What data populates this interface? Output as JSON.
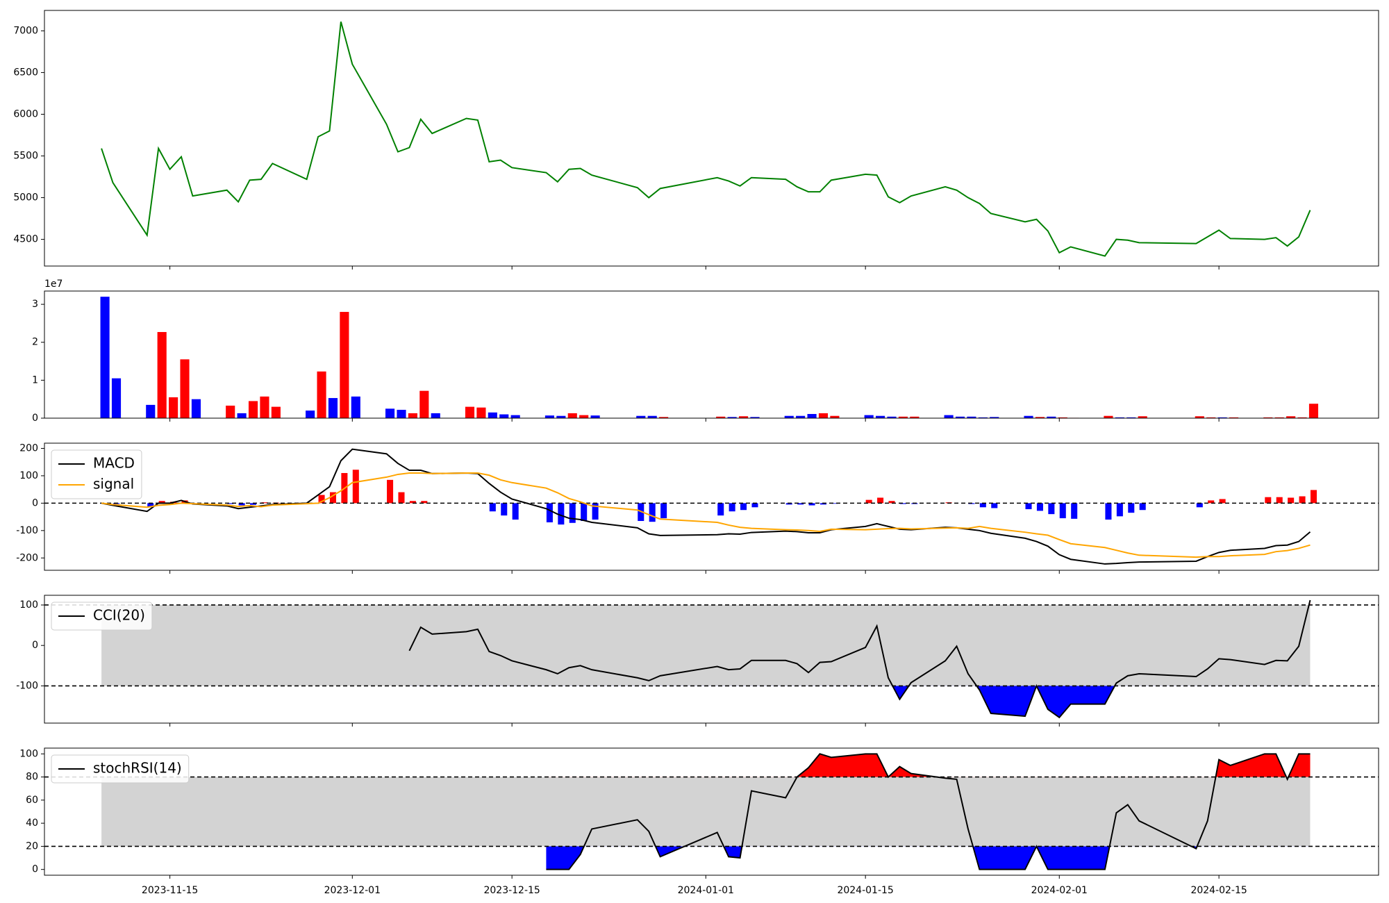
{
  "chart_data": {
    "type": "multi-panel",
    "x": [
      "2023-11-09",
      "2023-11-10",
      "2023-11-13",
      "2023-11-14",
      "2023-11-15",
      "2023-11-16",
      "2023-11-17",
      "2023-11-20",
      "2023-11-21",
      "2023-11-22",
      "2023-11-23",
      "2023-11-24",
      "2023-11-27",
      "2023-11-28",
      "2023-11-29",
      "2023-11-30",
      "2023-12-01",
      "2023-12-04",
      "2023-12-05",
      "2023-12-06",
      "2023-12-07",
      "2023-12-08",
      "2023-12-11",
      "2023-12-12",
      "2023-12-13",
      "2023-12-14",
      "2023-12-15",
      "2023-12-18",
      "2023-12-19",
      "2023-12-20",
      "2023-12-21",
      "2023-12-22",
      "2023-12-26",
      "2023-12-27",
      "2023-12-28",
      "2024-01-02",
      "2024-01-03",
      "2024-01-04",
      "2024-01-05",
      "2024-01-08",
      "2024-01-09",
      "2024-01-10",
      "2024-01-11",
      "2024-01-12",
      "2024-01-15",
      "2024-01-16",
      "2024-01-17",
      "2024-01-18",
      "2024-01-19",
      "2024-01-22",
      "2024-01-23",
      "2024-01-24",
      "2024-01-25",
      "2024-01-26",
      "2024-01-29",
      "2024-01-30",
      "2024-01-31",
      "2024-02-01",
      "2024-02-02",
      "2024-02-05",
      "2024-02-06",
      "2024-02-07",
      "2024-02-08",
      "2024-02-13",
      "2024-02-14",
      "2024-02-15",
      "2024-02-16",
      "2024-02-19",
      "2024-02-20",
      "2024-02-21",
      "2024-02-22",
      "2024-02-23"
    ],
    "xlim": [
      "2023-11-04",
      "2024-02-29"
    ],
    "xticks": [
      "2023-11-15",
      "2023-12-01",
      "2023-12-15",
      "2024-01-01",
      "2024-01-15",
      "2024-02-01",
      "2024-02-15"
    ],
    "panels": [
      {
        "type": "line",
        "ylim": [
          4180,
          7245
        ],
        "yticks": [
          4500,
          5000,
          5500,
          6000,
          6500,
          7000
        ],
        "series": [
          {
            "color": "#008000",
            "values": [
              5590,
              5180,
              4550,
              5590,
              5340,
              5490,
              5020,
              5090,
              4950,
              5210,
              5220,
              5410,
              5220,
              5730,
              5800,
              7110,
              6600,
              5880,
              5550,
              5600,
              5940,
              5770,
              5950,
              5930,
              5430,
              5450,
              5360,
              5300,
              5190,
              5340,
              5350,
              5270,
              5120,
              5000,
              5110,
              5240,
              5200,
              5140,
              5240,
              5220,
              5130,
              5070,
              5070,
              5210,
              5280,
              5270,
              5010,
              4940,
              5020,
              5130,
              5090,
              5000,
              4930,
              4810,
              4710,
              4740,
              4600,
              4340,
              4410,
              4300,
              4500,
              4490,
              4460,
              4450,
              4530,
              4610,
              4510,
              4500,
              4520,
              4420,
              4530,
              4850
            ]
          }
        ]
      },
      {
        "type": "bar",
        "ylim": [
          0,
          33500000
        ],
        "offset_label": "1e7",
        "yticks": [
          0,
          {
            "value": 10000000,
            "label": "1"
          },
          {
            "value": 20000000,
            "label": "2"
          },
          {
            "value": 30000000,
            "label": "3"
          }
        ],
        "values": [
          32000000,
          10500000,
          3500000,
          22700000,
          5500000,
          15500000,
          5000000,
          3300000,
          1300000,
          4500000,
          5700000,
          3000000,
          2000000,
          12300000,
          5300000,
          28000000,
          5700000,
          2500000,
          2200000,
          1300000,
          7200000,
          1300000,
          3000000,
          2800000,
          1500000,
          1000000,
          800000,
          700000,
          600000,
          1300000,
          800000,
          700000,
          600000,
          600000,
          300000,
          400000,
          300000,
          500000,
          300000,
          600000,
          600000,
          1100000,
          1300000,
          600000,
          800000,
          600000,
          400000,
          400000,
          400000,
          800000,
          400000,
          400000,
          200000,
          300000,
          600000,
          300000,
          400000,
          200000,
          100000,
          600000,
          200000,
          200000,
          500000,
          500000,
          200000,
          200000,
          200000,
          200000,
          200000,
          500000,
          200000,
          3800000
        ],
        "colors": [
          "blue",
          "blue",
          "blue",
          "red",
          "red",
          "red",
          "blue",
          "red",
          "blue",
          "red",
          "red",
          "red",
          "blue",
          "red",
          "blue",
          "red",
          "blue",
          "blue",
          "blue",
          "red",
          "red",
          "blue",
          "red",
          "red",
          "blue",
          "blue",
          "blue",
          "blue",
          "blue",
          "red",
          "red",
          "blue",
          "blue",
          "blue",
          "red",
          "red",
          "blue",
          "red",
          "blue",
          "blue",
          "blue",
          "blue",
          "red",
          "red",
          "blue",
          "blue",
          "blue",
          "red",
          "red",
          "blue",
          "blue",
          "blue",
          "blue",
          "blue",
          "blue",
          "red",
          "blue",
          "red",
          "red",
          "red",
          "blue",
          "blue",
          "red",
          "red",
          "red",
          "blue",
          "red",
          "red",
          "red",
          "red",
          "red",
          "red"
        ]
      },
      {
        "type": "macd",
        "ylim": [
          -245,
          219
        ],
        "yticks": [
          -200,
          -100,
          0,
          100,
          200
        ],
        "reference_lines": [
          0
        ],
        "legend": "upper left",
        "series": [
          {
            "name": "MACD",
            "color": "black",
            "values": [
              0,
              -8,
              -30,
              0,
              0,
              10,
              -3,
              -10,
              -20,
              -15,
              -10,
              -5,
              0,
              30,
              60,
              155,
              197,
              180,
              145,
              120,
              120,
              108,
              110,
              108,
              72,
              40,
              15,
              -20,
              -40,
              -55,
              -60,
              -70,
              -90,
              -112,
              -118,
              -115,
              -112,
              -113,
              -107,
              -102,
              -104,
              -108,
              -108,
              -97,
              -85,
              -75,
              -85,
              -95,
              -97,
              -88,
              -90,
              -95,
              -100,
              -110,
              -128,
              -140,
              -157,
              -188,
              -205,
              -222,
              -220,
              -217,
              -215,
              -212,
              -195,
              -180,
              -172,
              -165,
              -155,
              -153,
              -140,
              -105
            ]
          },
          {
            "name": "signal",
            "color": "orange",
            "values": [
              0,
              -5,
              -15,
              -8,
              -5,
              0,
              -2,
              -7,
              -12,
              -9,
              -13,
              -7,
              -2,
              0,
              20,
              45,
              75,
              95,
              105,
              110,
              110,
              108,
              110,
              110,
              102,
              85,
              75,
              55,
              38,
              17,
              5,
              -10,
              -25,
              -42,
              -58,
              -70,
              -80,
              -88,
              -92,
              -97,
              -98,
              -100,
              -103,
              -95,
              -97,
              -95,
              -93,
              -92,
              -94,
              -91,
              -90,
              -92,
              -85,
              -92,
              -106,
              -112,
              -117,
              -133,
              -148,
              -162,
              -172,
              -182,
              -190,
              -197,
              -195,
              -195,
              -192,
              -187,
              -177,
              -173,
              -165,
              -153
            ]
          }
        ],
        "histogram": {
          "pos_color": "red",
          "neg_color": "blue",
          "values": [
            0,
            -3,
            -15,
            8,
            5,
            10,
            -2,
            -3,
            -8,
            -6,
            3,
            2,
            0,
            30,
            40,
            110,
            122,
            85,
            40,
            8,
            8,
            0,
            0,
            0,
            -30,
            -45,
            -60,
            -70,
            -78,
            -72,
            -65,
            -60,
            -65,
            -68,
            -55,
            -45,
            -30,
            -25,
            -15,
            -5,
            -5,
            -8,
            -5,
            -2,
            12,
            20,
            8,
            -3,
            -3,
            3,
            0,
            -3,
            -15,
            -18,
            -22,
            -28,
            -40,
            -55,
            -57,
            -60,
            -48,
            -35,
            -25,
            -15,
            10,
            15,
            0,
            22,
            22,
            20,
            25,
            48
          ]
        }
      },
      {
        "type": "band",
        "ylim": [
          -192,
          124
        ],
        "yticks": [
          -100,
          0,
          100
        ],
        "levels": [
          -100,
          100
        ],
        "band_color": "#d3d3d3",
        "above_color": "red",
        "below_color": "blue",
        "legend": "upper left",
        "series": [
          {
            "name": "CCI(20)",
            "color": "black",
            "values": [
              null,
              null,
              null,
              null,
              null,
              null,
              null,
              null,
              null,
              null,
              null,
              null,
              null,
              null,
              null,
              null,
              null,
              null,
              null,
              -13,
              45,
              28,
              34,
              40,
              -15,
              -25,
              -38,
              -60,
              -70,
              -55,
              -50,
              -60,
              -80,
              -87,
              -75,
              -52,
              -60,
              -58,
              -37,
              -37,
              -45,
              -67,
              -42,
              -40,
              -5,
              48,
              -80,
              -133,
              -92,
              -38,
              -2,
              -70,
              -110,
              -168,
              -175,
              -100,
              -158,
              -178,
              -145,
              -145,
              -93,
              -75,
              -70,
              -77,
              -58,
              -33,
              -35,
              -47,
              -37,
              -38,
              -2,
              112
            ]
          }
        ]
      },
      {
        "type": "band",
        "ylim": [
          -5,
          105
        ],
        "yticks": [
          0,
          20,
          40,
          60,
          80,
          100
        ],
        "levels": [
          20,
          80
        ],
        "band_color": "#d3d3d3",
        "above_color": "red",
        "below_color": "blue",
        "legend": "upper left",
        "series": [
          {
            "name": "stochRSI(14)",
            "color": "black",
            "values": [
              null,
              null,
              null,
              null,
              null,
              null,
              null,
              null,
              null,
              null,
              null,
              null,
              null,
              null,
              null,
              null,
              null,
              null,
              null,
              null,
              null,
              null,
              null,
              null,
              null,
              null,
              null,
              0,
              0,
              0,
              13,
              35,
              43,
              33,
              11,
              32,
              11,
              10,
              68,
              62,
              80,
              88,
              100,
              97,
              100,
              100,
              80,
              89,
              83,
              79,
              78,
              35,
              0,
              0,
              0,
              20,
              0,
              0,
              0,
              0,
              49,
              56,
              42,
              18,
              42,
              95,
              90,
              100,
              100,
              78,
              100,
              100
            ]
          }
        ]
      }
    ]
  }
}
